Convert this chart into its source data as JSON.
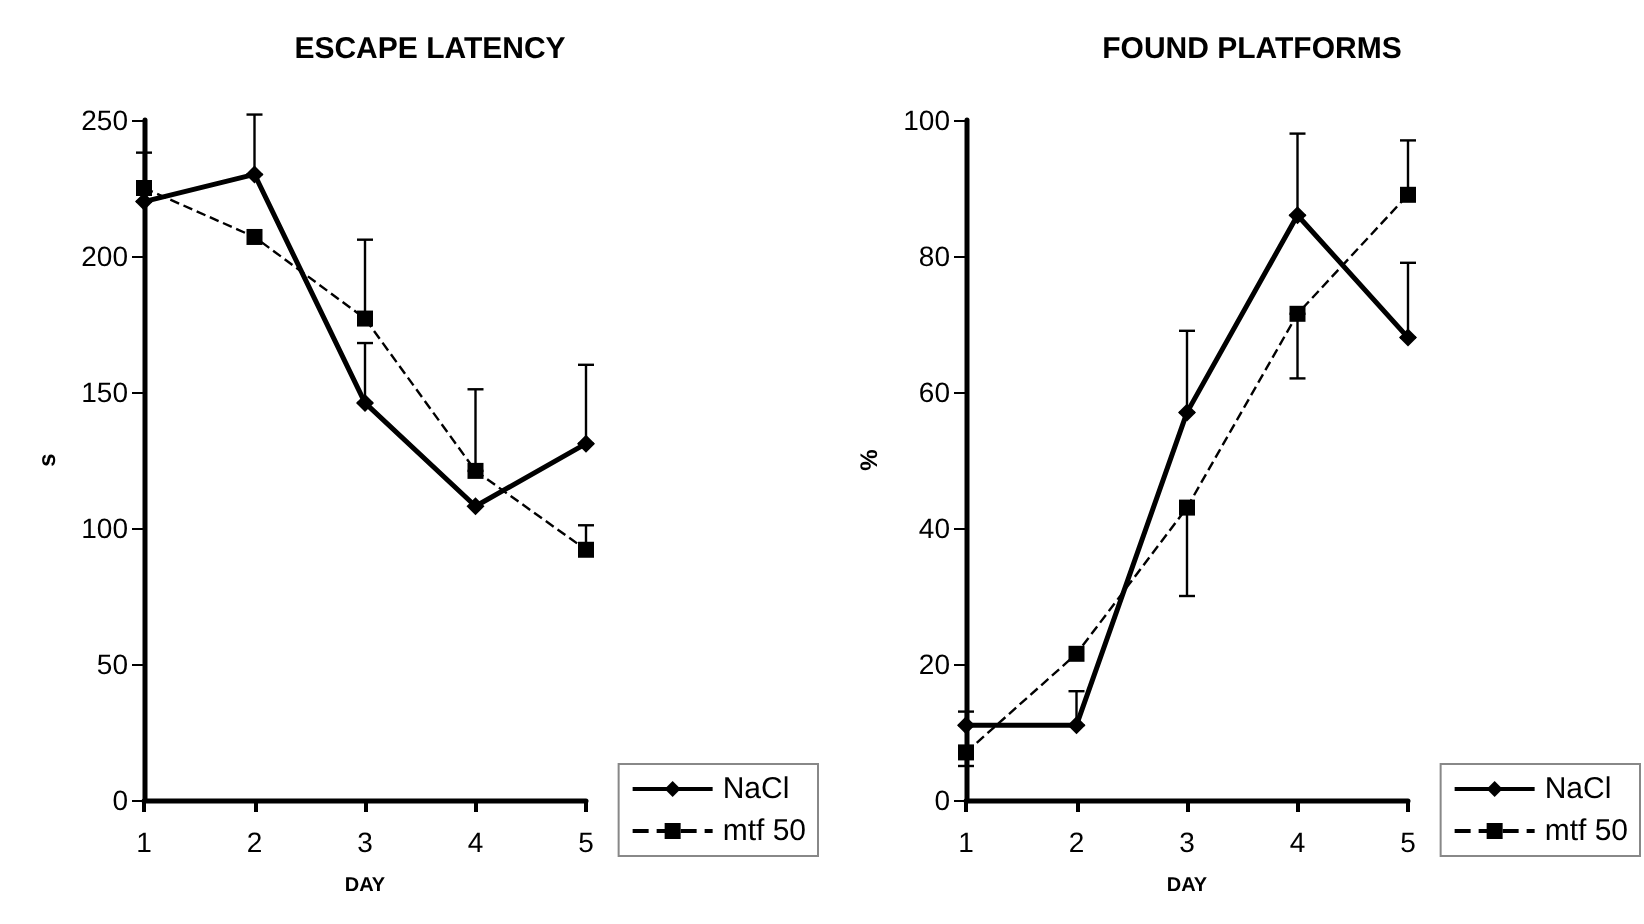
{
  "chart_data": [
    {
      "type": "line",
      "title": "ESCAPE LATENCY",
      "xlabel": "DAY",
      "ylabel": "s",
      "categories": [
        "1",
        "2",
        "3",
        "4",
        "5"
      ],
      "ylim": [
        0,
        250
      ],
      "yticks": [
        0,
        50,
        100,
        150,
        200,
        250
      ],
      "grid": false,
      "legend": "bottom right",
      "series": [
        {
          "name": "NaCl",
          "color": "#000000",
          "marker": "diamond",
          "line_style": "solid",
          "values": [
            220,
            230,
            146,
            108,
            131
          ],
          "errors": [
            [
              220,
              238
            ],
            [
              230,
              252
            ],
            [
              146,
              168
            ],
            null,
            [
              131,
              160
            ]
          ]
        },
        {
          "name": "mtf 50",
          "color": "#000000",
          "marker": "square",
          "line_style": "dashed",
          "values": [
            225,
            207,
            177,
            121,
            92
          ],
          "errors": [
            null,
            null,
            [
              177,
              206
            ],
            [
              121,
              151
            ],
            [
              92,
              101
            ]
          ]
        }
      ]
    },
    {
      "type": "line",
      "title": "FOUND PLATFORMS",
      "xlabel": "DAY",
      "ylabel": "%",
      "categories": [
        "1",
        "2",
        "3",
        "4",
        "5"
      ],
      "ylim": [
        0,
        100
      ],
      "yticks": [
        0,
        20,
        40,
        60,
        80,
        100
      ],
      "grid": false,
      "legend": "bottom right",
      "series": [
        {
          "name": "NaCl",
          "color": "#000000",
          "marker": "diamond",
          "line_style": "solid",
          "values": [
            11,
            11,
            57,
            86,
            68
          ],
          "errors": [
            [
              11,
              13
            ],
            [
              11,
              16
            ],
            [
              57,
              69
            ],
            [
              86,
              98
            ],
            [
              68,
              79
            ]
          ]
        },
        {
          "name": "mtf 50",
          "color": "#000000",
          "marker": "square",
          "line_style": "dashed",
          "values": [
            7,
            21.5,
            43,
            71.5,
            89
          ],
          "errors": [
            [
              5,
              7
            ],
            null,
            [
              30,
              43
            ],
            [
              62,
              71.5
            ],
            [
              89,
              97
            ]
          ]
        }
      ]
    }
  ]
}
